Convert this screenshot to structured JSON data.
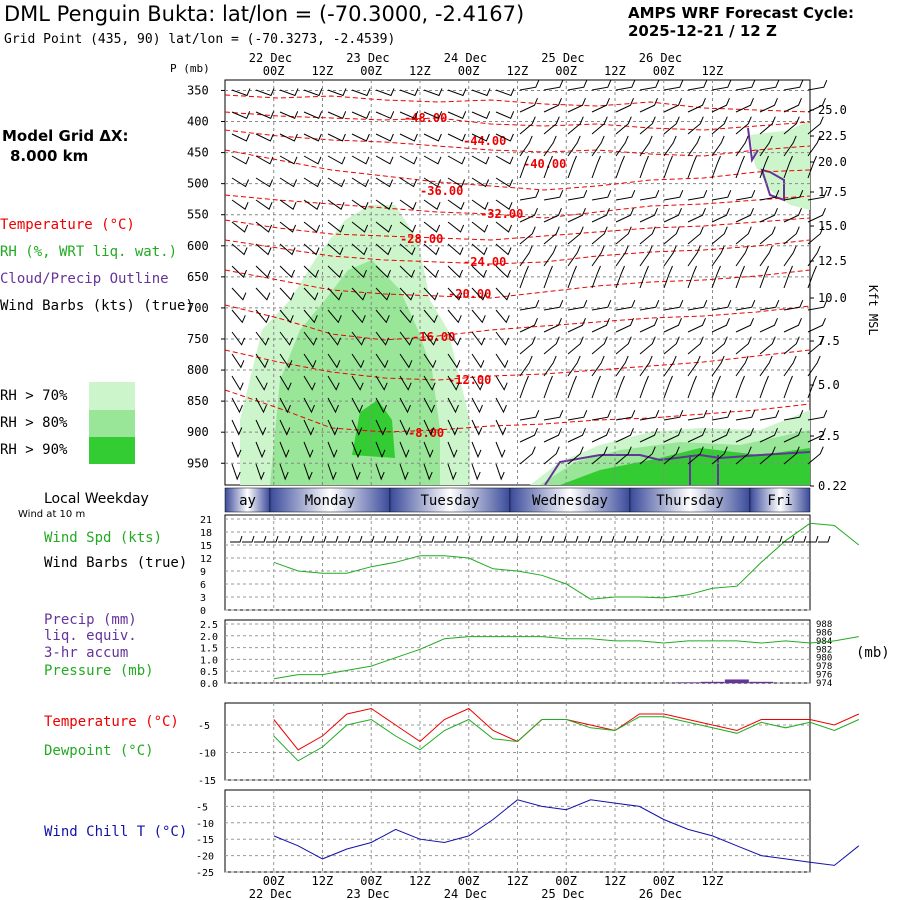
{
  "header": {
    "title": "DML Penguin Bukta:  lat/lon = (-70.3000, -2.4167)",
    "subtitle": "Grid Point (435, 90) lat/lon = (-70.3273, -2.4539)",
    "cycle_line1": "AMPS WRF Forecast Cycle:",
    "cycle_line2": "2025-12-21 / 12  Z",
    "grid_line1": "Model Grid ΔX:",
    "grid_line2": "8.000 km"
  },
  "legend": {
    "temperature": "Temperature (°C)",
    "rh": "RH (%, WRT liq. wat.)",
    "cloud": "Cloud/Precip Outline",
    "wind": "Wind Barbs (kts) (true)",
    "rh70": "RH > 70%",
    "rh80": "RH > 80%",
    "rh90": "RH > 90%",
    "colors": {
      "rh70": "#ccf5cc",
      "rh80": "#99e699",
      "rh90": "#33cc33",
      "temp": "#ee0000",
      "cloud": "#663399"
    }
  },
  "time_axis": {
    "ticks": [
      "00Z",
      "12Z",
      "00Z",
      "12Z",
      "00Z",
      "12Z",
      "00Z",
      "12Z",
      "00Z",
      "12Z"
    ],
    "dates": [
      "22 Dec",
      "23 Dec",
      "24 Dec",
      "25 Dec",
      "26 Dec"
    ]
  },
  "weekday": {
    "label": "Local Weekday",
    "days": [
      "ay",
      "Monday",
      "Tuesday",
      "Wednesday",
      "Thursday",
      "Fri"
    ]
  },
  "chart_data": [
    {
      "type": "heatmap",
      "ylabel": "P (mb)",
      "y2label": "Kft MSL",
      "pressure_ticks": [
        "350",
        "400",
        "450",
        "500",
        "550",
        "600",
        "650",
        "700",
        "750",
        "800",
        "850",
        "900",
        "950"
      ],
      "height_ticks": [
        "25.0",
        "22.5",
        "20.0",
        "17.5",
        "15.0",
        "12.5",
        "10.0",
        "7.5",
        "5.0",
        "2.5",
        "0.22"
      ],
      "temperature_labels": [
        "-48.00",
        "-44.00",
        "-40.00",
        "-36.00",
        "-32.00",
        "-28.00",
        "-24.00",
        "-20.00",
        "-16.00",
        "-12.00",
        "-8.00"
      ]
    },
    {
      "type": "line",
      "title": "Wind at 10 m",
      "label1": "Wind Spd (kts)",
      "label2": "Wind Barbs (true)",
      "yticks": [
        "21",
        "18",
        "15",
        "12",
        "9",
        "6",
        "3",
        "0"
      ],
      "ylim": [
        0,
        21
      ],
      "x": [
        0,
        6,
        12,
        18,
        24,
        30,
        36,
        42,
        48,
        54,
        60,
        66,
        72,
        78,
        84,
        90,
        96,
        102,
        108,
        114,
        120,
        126,
        132,
        138,
        144
      ],
      "values": [
        11,
        9,
        8.5,
        8.5,
        10,
        11,
        12.5,
        12.5,
        12,
        9.5,
        9,
        8,
        6,
        2.5,
        3,
        3,
        2.8,
        3.5,
        5,
        5.5,
        11,
        16,
        20,
        19.5,
        15
      ]
    },
    {
      "type": "line",
      "label1": "Precip (mm)",
      "label2": "liq. equiv.",
      "label3": "3-hr accum",
      "label4": "Pressure (mb)",
      "unit_right": "(mb)",
      "yticks": [
        "2.5",
        "2.0",
        "1.5",
        "1.0",
        "0.5",
        "0.0"
      ],
      "y2ticks": [
        "988",
        "986",
        "984",
        "982",
        "980",
        "978",
        "976",
        "974"
      ],
      "ylim": [
        0,
        2.5
      ],
      "y2lim": [
        974,
        988
      ],
      "x": [
        0,
        6,
        12,
        18,
        24,
        30,
        36,
        42,
        48,
        54,
        60,
        66,
        72,
        78,
        84,
        90,
        96,
        102,
        108,
        114,
        120,
        126,
        132,
        138,
        144
      ],
      "pressure": [
        975,
        976,
        976,
        977,
        978,
        980,
        982,
        984.5,
        985,
        985,
        985,
        985,
        984.5,
        984.5,
        984,
        984,
        983.5,
        984,
        984,
        984,
        983.5,
        984,
        983.5,
        984,
        985
      ],
      "precip": [
        0,
        0,
        0,
        0,
        0,
        0,
        0,
        0,
        0,
        0,
        0,
        0,
        0,
        0,
        0,
        0,
        0,
        0.03,
        0.05,
        0.15,
        0.05,
        0,
        0,
        0,
        0
      ]
    },
    {
      "type": "line",
      "label1": "Temperature (°C)",
      "label2": "Dewpoint (°C)",
      "yticks": [
        "-5",
        "-10",
        "-15"
      ],
      "ylim": [
        -15,
        -1
      ],
      "x": [
        0,
        6,
        12,
        18,
        24,
        30,
        36,
        42,
        48,
        54,
        60,
        66,
        72,
        78,
        84,
        90,
        96,
        102,
        108,
        114,
        120,
        126,
        132,
        138,
        144
      ],
      "temperature": [
        -4,
        -9.5,
        -7,
        -3,
        -2,
        -5,
        -8,
        -4,
        -2,
        -6,
        -8,
        -4,
        -4,
        -5,
        -6,
        -3,
        -3,
        -4,
        -5,
        -6,
        -4,
        -4,
        -4,
        -5,
        -3
      ],
      "dewpoint": [
        -7,
        -11.5,
        -9,
        -5,
        -4,
        -7,
        -9.5,
        -6,
        -4,
        -7.5,
        -8,
        -4,
        -4,
        -5.5,
        -6,
        -3.5,
        -3.5,
        -4.5,
        -5.5,
        -6.5,
        -4.5,
        -5.5,
        -4.5,
        -6,
        -4
      ]
    },
    {
      "type": "line",
      "label1": "Wind Chill T (°C)",
      "yticks": [
        "-5",
        "-10",
        "-15",
        "-20",
        "-25"
      ],
      "ylim": [
        -25,
        0
      ],
      "x": [
        0,
        6,
        12,
        18,
        24,
        30,
        36,
        42,
        48,
        54,
        60,
        66,
        72,
        78,
        84,
        90,
        96,
        102,
        108,
        114,
        120,
        126,
        132,
        138,
        144
      ],
      "values": [
        -14,
        -17,
        -21,
        -18,
        -16,
        -12,
        -15,
        -16,
        -14,
        -9,
        -3,
        -5,
        -6,
        -3,
        -4,
        -5,
        -9,
        -12,
        -14,
        -17,
        -20,
        -21,
        -22,
        -23,
        -17
      ]
    }
  ]
}
